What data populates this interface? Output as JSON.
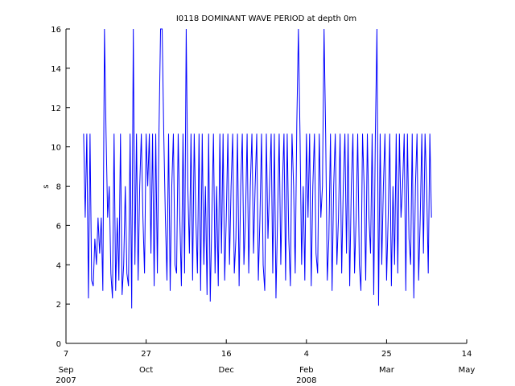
{
  "chart_data": {
    "type": "line",
    "title": "I0118 DOMINANT WAVE PERIOD at depth 0m",
    "y_label": "s",
    "color": "#0000ff",
    "xlim": [
      "2007-09-07",
      "2008-05-14"
    ],
    "xticks": [
      {
        "value": "2007-09-07",
        "label": "7 Sep 2007"
      },
      {
        "value": "2007-10-27",
        "label": "27 Oct"
      },
      {
        "value": "2007-12-16",
        "label": "16 Dec"
      },
      {
        "value": "2008-02-04",
        "label": "4 Feb 2008"
      },
      {
        "value": "2008-03-25",
        "label": "25 Mar"
      },
      {
        "value": "2008-05-14",
        "label": "14 May"
      }
    ],
    "ylim": [
      0,
      16
    ],
    "yticks": [
      0,
      2,
      4,
      6,
      8,
      10,
      12,
      14,
      16
    ],
    "x": [
      "2007-09-18",
      "2007-09-19",
      "2007-09-20",
      "2007-09-21",
      "2007-09-22",
      "2007-09-23",
      "2007-09-24",
      "2007-09-25",
      "2007-09-26",
      "2007-09-27",
      "2007-09-28",
      "2007-09-29",
      "2007-09-30",
      "2007-10-01",
      "2007-10-02",
      "2007-10-03",
      "2007-10-04",
      "2007-10-05",
      "2007-10-06",
      "2007-10-07",
      "2007-10-08",
      "2007-10-09",
      "2007-10-10",
      "2007-10-11",
      "2007-10-12",
      "2007-10-13",
      "2007-10-14",
      "2007-10-15",
      "2007-10-16",
      "2007-10-17",
      "2007-10-18",
      "2007-10-19",
      "2007-10-20",
      "2007-10-21",
      "2007-10-22",
      "2007-10-23",
      "2007-10-24",
      "2007-10-25",
      "2007-10-26",
      "2007-10-27",
      "2007-10-28",
      "2007-10-29",
      "2007-10-30",
      "2007-10-31",
      "2007-11-01",
      "2007-11-02",
      "2007-11-03",
      "2007-11-04",
      "2007-11-05",
      "2007-11-06",
      "2007-11-07",
      "2007-11-08",
      "2007-11-09",
      "2007-11-10",
      "2007-11-11",
      "2007-11-12",
      "2007-11-13",
      "2007-11-14",
      "2007-11-15",
      "2007-11-16",
      "2007-11-17",
      "2007-11-18",
      "2007-11-19",
      "2007-11-20",
      "2007-11-21",
      "2007-11-22",
      "2007-11-23",
      "2007-11-24",
      "2007-11-25",
      "2007-11-26",
      "2007-11-27",
      "2007-11-28",
      "2007-11-29",
      "2007-11-30",
      "2007-12-01",
      "2007-12-02",
      "2007-12-03",
      "2007-12-04",
      "2007-12-05",
      "2007-12-06",
      "2007-12-07",
      "2007-12-08",
      "2007-12-09",
      "2007-12-10",
      "2007-12-11",
      "2007-12-12",
      "2007-12-13",
      "2007-12-14",
      "2007-12-15",
      "2007-12-16",
      "2007-12-17",
      "2007-12-18",
      "2007-12-19",
      "2007-12-20",
      "2007-12-21",
      "2007-12-22",
      "2007-12-23",
      "2007-12-24",
      "2007-12-25",
      "2007-12-26",
      "2007-12-27",
      "2007-12-28",
      "2007-12-29",
      "2007-12-30",
      "2007-12-31",
      "2008-01-01",
      "2008-01-02",
      "2008-01-03",
      "2008-01-04",
      "2008-01-05",
      "2008-01-06",
      "2008-01-07",
      "2008-01-08",
      "2008-01-09",
      "2008-01-10",
      "2008-01-11",
      "2008-01-12",
      "2008-01-13",
      "2008-01-14",
      "2008-01-15",
      "2008-01-16",
      "2008-01-17",
      "2008-01-18",
      "2008-01-19",
      "2008-01-20",
      "2008-01-21",
      "2008-01-22",
      "2008-01-23",
      "2008-01-24",
      "2008-01-25",
      "2008-01-26",
      "2008-01-27",
      "2008-01-28",
      "2008-01-29",
      "2008-01-30",
      "2008-01-31",
      "2008-02-01",
      "2008-02-02",
      "2008-02-03",
      "2008-02-04",
      "2008-02-05",
      "2008-02-06",
      "2008-02-07",
      "2008-02-08",
      "2008-02-09",
      "2008-02-10",
      "2008-02-11",
      "2008-02-12",
      "2008-02-13",
      "2008-02-14",
      "2008-02-15",
      "2008-02-16",
      "2008-02-17",
      "2008-02-18",
      "2008-02-19",
      "2008-02-20",
      "2008-02-21",
      "2008-02-22",
      "2008-02-23",
      "2008-02-24",
      "2008-02-25",
      "2008-02-26",
      "2008-02-27",
      "2008-02-28",
      "2008-02-29",
      "2008-03-01",
      "2008-03-02",
      "2008-03-03",
      "2008-03-04",
      "2008-03-05",
      "2008-03-06",
      "2008-03-07",
      "2008-03-08",
      "2008-03-09",
      "2008-03-10",
      "2008-03-11",
      "2008-03-12",
      "2008-03-13",
      "2008-03-14",
      "2008-03-15",
      "2008-03-16",
      "2008-03-17",
      "2008-03-18",
      "2008-03-19",
      "2008-03-20",
      "2008-03-21",
      "2008-03-22",
      "2008-03-23",
      "2008-03-24",
      "2008-03-25",
      "2008-03-26",
      "2008-03-27",
      "2008-03-28",
      "2008-03-29",
      "2008-03-30",
      "2008-03-31",
      "2008-04-01",
      "2008-04-02",
      "2008-04-03",
      "2008-04-04",
      "2008-04-05",
      "2008-04-06",
      "2008-04-07",
      "2008-04-08",
      "2008-04-09",
      "2008-04-10",
      "2008-04-11",
      "2008-04-12",
      "2008-04-13",
      "2008-04-14",
      "2008-04-15",
      "2008-04-16",
      "2008-04-17",
      "2008-04-18",
      "2008-04-19",
      "2008-04-20",
      "2008-04-21",
      "2008-04-22"
    ],
    "values": [
      10.67,
      6.4,
      10.67,
      2.29,
      10.67,
      3.2,
      2.91,
      5.33,
      4,
      6.4,
      4.57,
      6.4,
      2.67,
      16,
      10.67,
      6.4,
      8,
      3.56,
      2.29,
      10.67,
      2.67,
      6.4,
      3.2,
      10.67,
      2.46,
      4,
      8,
      3.56,
      2.91,
      10.67,
      1.78,
      16,
      4,
      10.67,
      3.2,
      8,
      10.67,
      6.4,
      3.56,
      10.67,
      8,
      10.67,
      4.57,
      10.67,
      2.91,
      10.67,
      3.56,
      10.67,
      16,
      16,
      10.67,
      6.4,
      3.2,
      10.67,
      2.67,
      8,
      10.67,
      4,
      3.56,
      10.67,
      6.4,
      2.91,
      10.67,
      3.56,
      16,
      8,
      4.57,
      10.67,
      3.2,
      10.67,
      6.4,
      3.56,
      10.67,
      2.67,
      10.67,
      4,
      8,
      2.46,
      10.67,
      2.13,
      6.4,
      10.67,
      3.56,
      8,
      2.91,
      10.67,
      4.57,
      10.67,
      3.2,
      6.4,
      10.67,
      4,
      8,
      10.67,
      3.56,
      5.33,
      10.67,
      2.91,
      8,
      10.67,
      4,
      6.4,
      10.67,
      3.56,
      8,
      10.67,
      4.57,
      8,
      10.67,
      3.2,
      6.4,
      10.67,
      4,
      2.67,
      10.67,
      5.33,
      8,
      10.67,
      3.56,
      10.67,
      2.29,
      6.4,
      10.67,
      4,
      8,
      10.67,
      3.2,
      10.67,
      5.33,
      2.91,
      10.67,
      8,
      3.56,
      11.2,
      16,
      10.67,
      4,
      8,
      3.2,
      10.67,
      6.4,
      10.67,
      2.91,
      8,
      10.67,
      4.57,
      3.56,
      10.67,
      6.4,
      8,
      16,
      10.67,
      3.2,
      5.33,
      10.67,
      2.67,
      8,
      10.67,
      4,
      6.4,
      10.67,
      3.56,
      8,
      10.67,
      4.57,
      10.67,
      2.91,
      8,
      10.67,
      3.56,
      6.4,
      10.67,
      4,
      2.67,
      10.67,
      8,
      3.2,
      10.67,
      6.4,
      4.57,
      10.67,
      2.46,
      10.67,
      16,
      1.92,
      10.67,
      4,
      8,
      10.67,
      3.2,
      6.4,
      10.67,
      2.91,
      8,
      4,
      10.67,
      3.56,
      10.67,
      6.4,
      8,
      10.67,
      2.67,
      10.67,
      5.33,
      4,
      10.67,
      2.29,
      8,
      10.67,
      3.2,
      6.4,
      10.67,
      4.57,
      10.67,
      8,
      3.56,
      10.67,
      6.4
    ]
  }
}
